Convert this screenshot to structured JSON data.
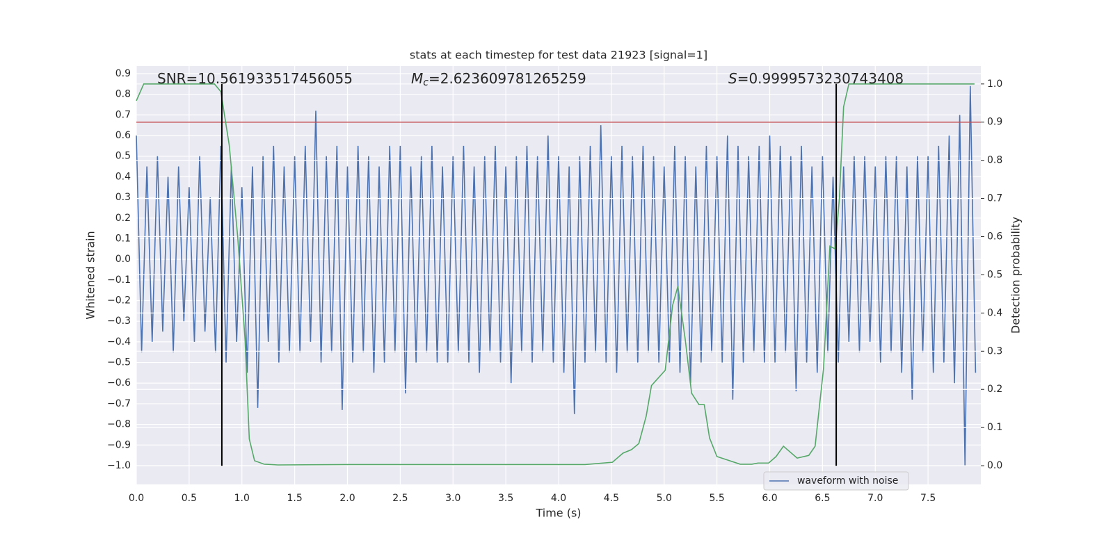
{
  "chart_data": {
    "type": "line",
    "title": "stats at each timestep for test data 21923 [signal=1]",
    "xlabel": "Time (s)",
    "ylabel": "Whitened strain",
    "y2label": "Detection probability",
    "xlim": [
      0,
      8.0
    ],
    "ylim": [
      -1.091,
      0.937
    ],
    "y2lim": [
      -0.049,
      1.047
    ],
    "grid": true,
    "legend": "lower right",
    "xticks": [
      {
        "value": 0,
        "label": "0.0"
      },
      {
        "value": 0.5,
        "label": "0.5"
      },
      {
        "value": 1,
        "label": "1.0"
      },
      {
        "value": 1.5,
        "label": "1.5"
      },
      {
        "value": 2,
        "label": "2.0"
      },
      {
        "value": 2.5,
        "label": "2.5"
      },
      {
        "value": 3,
        "label": "3.0"
      },
      {
        "value": 3.5,
        "label": "3.5"
      },
      {
        "value": 4,
        "label": "4.0"
      },
      {
        "value": 4.5,
        "label": "4.5"
      },
      {
        "value": 5,
        "label": "5.0"
      },
      {
        "value": 5.5,
        "label": "5.5"
      },
      {
        "value": 6,
        "label": "6.0"
      },
      {
        "value": 6.5,
        "label": "6.5"
      },
      {
        "value": 7,
        "label": "7.0"
      },
      {
        "value": 7.5,
        "label": "7.5"
      }
    ],
    "yticks": [
      {
        "value": -1.0,
        "label": "−1.0"
      },
      {
        "value": -0.9,
        "label": "−0.9"
      },
      {
        "value": -0.8,
        "label": "−0.8"
      },
      {
        "value": -0.7,
        "label": "−0.7"
      },
      {
        "value": -0.6,
        "label": "−0.6"
      },
      {
        "value": -0.5,
        "label": "−0.5"
      },
      {
        "value": -0.4,
        "label": "−0.4"
      },
      {
        "value": -0.3,
        "label": "−0.3"
      },
      {
        "value": -0.2,
        "label": "−0.2"
      },
      {
        "value": -0.1,
        "label": "−0.1"
      },
      {
        "value": 0,
        "label": "0.0"
      },
      {
        "value": 0.1,
        "label": "0.1"
      },
      {
        "value": 0.2,
        "label": "0.2"
      },
      {
        "value": 0.3,
        "label": "0.3"
      },
      {
        "value": 0.4,
        "label": "0.4"
      },
      {
        "value": 0.5,
        "label": "0.5"
      },
      {
        "value": 0.6,
        "label": "0.6"
      },
      {
        "value": 0.7,
        "label": "0.7"
      },
      {
        "value": 0.8,
        "label": "0.8"
      },
      {
        "value": 0.9,
        "label": "0.9"
      }
    ],
    "y2ticks": [
      {
        "value": 0,
        "label": "0.0"
      },
      {
        "value": 0.1,
        "label": "0.1"
      },
      {
        "value": 0.2,
        "label": "0.2"
      },
      {
        "value": 0.3,
        "label": "0.3"
      },
      {
        "value": 0.4,
        "label": "0.4"
      },
      {
        "value": 0.5,
        "label": "0.5"
      },
      {
        "value": 0.6,
        "label": "0.6"
      },
      {
        "value": 0.7,
        "label": "0.7"
      },
      {
        "value": 0.8,
        "label": "0.8"
      },
      {
        "value": 0.9,
        "label": "0.9"
      },
      {
        "value": 1,
        "label": "1.0"
      }
    ],
    "series": [
      {
        "name": "waveform with noise",
        "color": "#4c72b0",
        "x": [
          0,
          0.05,
          0.1,
          0.15,
          0.2,
          0.25,
          0.3,
          0.35,
          0.4,
          0.45,
          0.5,
          0.55,
          0.6,
          0.65,
          0.7,
          0.75,
          0.8,
          0.85,
          0.9,
          0.95,
          1,
          1.05,
          1.1,
          1.15,
          1.2,
          1.25,
          1.3,
          1.35,
          1.4,
          1.45,
          1.5,
          1.55,
          1.6,
          1.65,
          1.7,
          1.75,
          1.8,
          1.85,
          1.9,
          1.95,
          2,
          2.05,
          2.1,
          2.15,
          2.2,
          2.25,
          2.3,
          2.35,
          2.4,
          2.45,
          2.5,
          2.55,
          2.6,
          2.65,
          2.7,
          2.75,
          2.8,
          2.85,
          2.9,
          2.95,
          3,
          3.05,
          3.1,
          3.15,
          3.2,
          3.25,
          3.3,
          3.35,
          3.4,
          3.45,
          3.5,
          3.55,
          3.6,
          3.65,
          3.7,
          3.75,
          3.8,
          3.85,
          3.9,
          3.95,
          4,
          4.05,
          4.1,
          4.15,
          4.2,
          4.25,
          4.3,
          4.35,
          4.4,
          4.45,
          4.5,
          4.55,
          4.6,
          4.65,
          4.7,
          4.75,
          4.8,
          4.85,
          4.9,
          4.95,
          5,
          5.05,
          5.1,
          5.15,
          5.2,
          5.25,
          5.3,
          5.35,
          5.4,
          5.45,
          5.5,
          5.55,
          5.6,
          5.65,
          5.7,
          5.75,
          5.8,
          5.85,
          5.9,
          5.95,
          6,
          6.05,
          6.1,
          6.15,
          6.2,
          6.25,
          6.3,
          6.35,
          6.4,
          6.45,
          6.5,
          6.55,
          6.6,
          6.65,
          6.7,
          6.75,
          6.8,
          6.85,
          6.9,
          6.95,
          7,
          7.05,
          7.1,
          7.15,
          7.2,
          7.25,
          7.3,
          7.35,
          7.4,
          7.45,
          7.5,
          7.55,
          7.6,
          7.65,
          7.7,
          7.75,
          7.8,
          7.85,
          7.9,
          7.95
        ],
        "values": [
          0.6,
          -0.45,
          0.45,
          -0.4,
          0.5,
          -0.35,
          0.4,
          -0.45,
          0.45,
          -0.3,
          0.35,
          -0.4,
          0.5,
          -0.35,
          0.3,
          -0.45,
          0.55,
          -0.5,
          0.45,
          -0.4,
          0.35,
          -0.55,
          0.45,
          -0.72,
          0.5,
          -0.4,
          0.55,
          -0.5,
          0.45,
          -0.45,
          0.5,
          -0.45,
          0.55,
          -0.4,
          0.72,
          -0.5,
          0.5,
          -0.45,
          0.55,
          -0.73,
          0.45,
          -0.5,
          0.55,
          -0.45,
          0.5,
          -0.55,
          0.45,
          -0.5,
          0.55,
          -0.45,
          0.55,
          -0.65,
          0.45,
          -0.5,
          0.5,
          -0.45,
          0.55,
          -0.5,
          0.45,
          -0.5,
          0.5,
          -0.45,
          0.55,
          -0.5,
          0.45,
          -0.55,
          0.5,
          -0.45,
          0.55,
          -0.5,
          0.45,
          -0.6,
          0.5,
          -0.45,
          0.55,
          -0.5,
          0.5,
          -0.45,
          0.6,
          -0.5,
          0.5,
          -0.55,
          0.45,
          -0.75,
          0.5,
          -0.5,
          0.55,
          -0.45,
          0.65,
          -0.5,
          0.5,
          -0.55,
          0.55,
          -0.45,
          0.5,
          -0.5,
          0.55,
          -0.45,
          0.5,
          -0.5,
          0.45,
          -0.5,
          0.55,
          -0.55,
          0.5,
          -0.6,
          0.45,
          -0.5,
          0.55,
          -0.45,
          0.5,
          -0.5,
          0.6,
          -0.68,
          0.55,
          -0.5,
          0.5,
          -0.45,
          0.55,
          -0.5,
          0.6,
          -0.5,
          0.55,
          -0.45,
          0.5,
          -0.64,
          0.55,
          -0.5,
          0.45,
          -0.55,
          0.5,
          -0.45,
          0.4,
          -0.5,
          0.45,
          -0.4,
          0.5,
          -0.45,
          0.5,
          -0.4,
          0.45,
          -0.5,
          0.5,
          -0.45,
          0.5,
          -0.55,
          0.45,
          -0.68,
          0.5,
          -0.45,
          0.5,
          -0.55,
          0.55,
          -0.5,
          0.6,
          -0.6,
          0.7,
          -1.0,
          0.84,
          -0.55
        ]
      }
    ],
    "probability": {
      "axis": "y2",
      "color": "#55a868",
      "x": [
        0,
        0.07,
        0.74,
        0.8,
        0.88,
        0.96,
        1.03,
        1.07,
        1.12,
        1.21,
        1.34,
        2.0,
        4.25,
        4.51,
        4.61,
        4.69,
        4.76,
        4.83,
        4.88,
        5.01,
        5.08,
        5.13,
        5.2,
        5.26,
        5.33,
        5.38,
        5.43,
        5.5,
        5.6,
        5.72,
        5.83,
        5.89,
        5.99,
        6.06,
        6.13,
        6.26,
        6.37,
        6.43,
        6.51,
        6.57,
        6.62,
        6.66,
        6.7,
        6.75,
        7.94
      ],
      "values": [
        0.956,
        1.0,
        1.0,
        0.98,
        0.84,
        0.6,
        0.33,
        0.07,
        0.013,
        0.004,
        0.002,
        0.003,
        0.003,
        0.009,
        0.033,
        0.042,
        0.058,
        0.13,
        0.21,
        0.25,
        0.42,
        0.47,
        0.33,
        0.19,
        0.16,
        0.16,
        0.073,
        0.024,
        0.015,
        0.004,
        0.004,
        0.007,
        0.007,
        0.024,
        0.051,
        0.02,
        0.027,
        0.051,
        0.255,
        0.575,
        0.568,
        0.7,
        0.94,
        1.0,
        1.0
      ]
    },
    "threshold": {
      "axis": "y2",
      "value": 0.9,
      "color": "#c44e52"
    },
    "vlines": {
      "x": [
        0.81,
        6.63
      ],
      "y2": [
        0,
        1
      ],
      "color": "#000000"
    },
    "annotations": [
      {
        "text": "SNR=10.561933517456055"
      },
      {
        "symbol": "M",
        "subscript": "c",
        "text": "=2.623609781265259"
      },
      {
        "symbol": "S",
        "text": "=0.9999573230743408"
      }
    ]
  }
}
